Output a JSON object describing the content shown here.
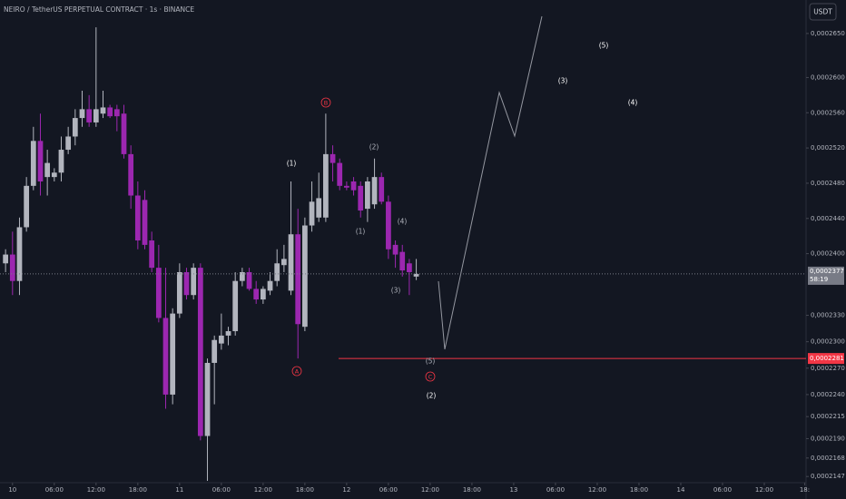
{
  "chart_data": {
    "type": "candlestick",
    "title": "NEIRO / TetherUS PERPETUAL CONTRACT · 1s · BINANCE",
    "currency": "USDT",
    "up_color": "#b2b5be",
    "down_color": "#9c27b0",
    "x": [
      -1,
      0,
      1,
      2,
      3,
      4,
      5,
      6,
      7,
      8,
      9,
      10,
      11,
      12,
      13,
      14,
      15,
      16,
      17,
      18,
      19,
      20,
      21,
      22,
      23,
      24,
      25,
      26,
      27,
      28,
      29,
      30,
      31,
      32,
      33,
      34,
      35,
      36,
      37,
      38,
      39,
      40,
      41,
      42,
      43,
      44,
      45,
      46,
      47,
      48,
      49,
      50,
      51,
      52,
      53,
      54,
      55,
      56,
      57,
      58
    ],
    "open": [
      0.0002389,
      0.0002399,
      0.0002369,
      0.000243,
      0.0002477,
      0.0002528,
      0.0002487,
      0.0002487,
      0.0002492,
      0.0002518,
      0.0002533,
      0.0002554,
      0.0002564,
      0.0002549,
      0.0002559,
      0.0002566,
      0.0002564,
      0.0002559,
      0.0002513,
      0.0002466,
      0.0002461,
      0.0002415,
      0.0002384,
      0.0002327,
      0.000224,
      0.0002332,
      0.0002379,
      0.0002353,
      0.0002384,
      0.0002193,
      0.0002276,
      0.0002298,
      0.0002307,
      0.0002312,
      0.0002369,
      0.0002379,
      0.000236,
      0.0002348,
      0.0002358,
      0.0002369,
      0.0002387,
      0.0002358,
      0.0002422,
      0.0002317,
      0.0002432,
      0.0002441,
      0.0002441,
      0.0002513,
      0.0002503,
      0.0002477,
      0.0002482,
      0.0002477,
      0.0002451,
      0.0002456,
      0.0002487,
      0.0002459,
      0.000241,
      0.0002402,
      0.0002389,
      0.0002374
    ],
    "high": [
      0.0002405,
      0.0002425,
      0.0002441,
      0.0002487,
      0.0002544,
      0.0002559,
      0.0002518,
      0.0002497,
      0.0002533,
      0.0002544,
      0.0002564,
      0.0002585,
      0.000258,
      0.0002657,
      0.0002585,
      0.0002569,
      0.0002569,
      0.0002569,
      0.0002523,
      0.0002482,
      0.0002472,
      0.0002425,
      0.000241,
      0.0002384,
      0.0002338,
      0.0002389,
      0.0002384,
      0.0002389,
      0.0002389,
      0.0002281,
      0.0002307,
      0.0002332,
      0.0002317,
      0.0002379,
      0.0002384,
      0.0002384,
      0.0002369,
      0.0002363,
      0.0002379,
      0.0002405,
      0.000241,
      0.0002482,
      0.0002451,
      0.0002441,
      0.0002482,
      0.0002492,
      0.0002559,
      0.0002523,
      0.0002508,
      0.0002482,
      0.0002487,
      0.0002482,
      0.0002487,
      0.0002508,
      0.0002492,
      0.0002466,
      0.0002415,
      0.000241,
      0.0002394,
      0.0002394
    ],
    "low": [
      0.0002379,
      0.0002353,
      0.0002353,
      0.0002425,
      0.0002472,
      0.0002466,
      0.0002466,
      0.0002482,
      0.0002482,
      0.0002513,
      0.0002523,
      0.0002544,
      0.0002544,
      0.0002544,
      0.0002554,
      0.0002554,
      0.0002539,
      0.0002508,
      0.0002451,
      0.0002405,
      0.0002405,
      0.0002379,
      0.0002322,
      0.0002224,
      0.0002229,
      0.0002327,
      0.0002348,
      0.0002348,
      0.0002188,
      0.0002142,
      0.0002229,
      0.0002291,
      0.0002296,
      0.0002307,
      0.0002363,
      0.0002358,
      0.0002343,
      0.0002343,
      0.0002353,
      0.0002363,
      0.0002379,
      0.0002353,
      0.0002281,
      0.0002312,
      0.0002425,
      0.0002436,
      0.0002436,
      0.0002482,
      0.0002472,
      0.0002472,
      0.0002466,
      0.0002441,
      0.0002436,
      0.0002451,
      0.0002456,
      0.0002394,
      0.0002384,
      0.0002374,
      0.0002353,
      0.000237
    ],
    "close": [
      0.0002399,
      0.0002369,
      0.000243,
      0.0002477,
      0.0002528,
      0.0002482,
      0.0002503,
      0.0002492,
      0.0002518,
      0.0002533,
      0.0002554,
      0.0002564,
      0.0002549,
      0.0002564,
      0.0002566,
      0.0002556,
      0.0002556,
      0.0002513,
      0.0002466,
      0.0002415,
      0.000241,
      0.0002384,
      0.0002327,
      0.000224,
      0.0002332,
      0.0002379,
      0.0002353,
      0.0002384,
      0.0002193,
      0.0002276,
      0.0002302,
      0.0002307,
      0.0002312,
      0.0002369,
      0.0002379,
      0.000236,
      0.0002348,
      0.000236,
      0.0002369,
      0.0002389,
      0.0002394,
      0.0002422,
      0.000232,
      0.0002432,
      0.0002459,
      0.0002463,
      0.0002513,
      0.0002503,
      0.0002477,
      0.0002475,
      0.0002472,
      0.0002449,
      0.0002482,
      0.0002487,
      0.0002459,
      0.0002405,
      0.0002399,
      0.0002381,
      0.0002379,
      0.0002377
    ],
    "xlim": [
      -1.8,
      114
    ],
    "xticks": [
      {
        "value": 0,
        "label": "10"
      },
      {
        "value": 6,
        "label": "06:00"
      },
      {
        "value": 12,
        "label": "12:00"
      },
      {
        "value": 18,
        "label": "18:00"
      },
      {
        "value": 24,
        "label": "11"
      },
      {
        "value": 30,
        "label": "06:00"
      },
      {
        "value": 36,
        "label": "12:00"
      },
      {
        "value": 42,
        "label": "18:00"
      },
      {
        "value": 48,
        "label": "12"
      },
      {
        "value": 54,
        "label": "06:00"
      },
      {
        "value": 60,
        "label": "12:00"
      },
      {
        "value": 66,
        "label": "18:00"
      },
      {
        "value": 72,
        "label": "13"
      },
      {
        "value": 78,
        "label": "06:00"
      },
      {
        "value": 84,
        "label": "12:00"
      },
      {
        "value": 90,
        "label": "18:00"
      },
      {
        "value": 96,
        "label": "14"
      },
      {
        "value": 102,
        "label": "06:00"
      },
      {
        "value": 108,
        "label": "12:00"
      },
      {
        "value": 113.8,
        "label": "18:"
      }
    ],
    "ylim": [
      0.000214,
      0.0002688
    ],
    "yticks": [
      {
        "value": 0.000265,
        "label": "0,0002650"
      },
      {
        "value": 0.00026,
        "label": "0,0002600"
      },
      {
        "value": 0.000256,
        "label": "0,0002560"
      },
      {
        "value": 0.000252,
        "label": "0,0002520"
      },
      {
        "value": 0.000248,
        "label": "0,0002480"
      },
      {
        "value": 0.000244,
        "label": "0,0002440"
      },
      {
        "value": 0.00024,
        "label": "0,0002400"
      },
      {
        "value": 0.000233,
        "label": "0,0002330"
      },
      {
        "value": 0.00023,
        "label": "0,0002300"
      },
      {
        "value": 0.000227,
        "label": "0,0002270"
      },
      {
        "value": 0.000224,
        "label": "0,0002240"
      },
      {
        "value": 0.0002215,
        "label": "0,0002215"
      },
      {
        "value": 0.000219,
        "label": "0,0002190"
      },
      {
        "value": 0.0002168,
        "label": "0,0002168"
      },
      {
        "value": 0.0002147,
        "label": "0,0002147"
      }
    ],
    "last_price": {
      "value": 0.0002377,
      "label": "0,0002377",
      "countdown": "58:19",
      "color": "#787b86"
    },
    "price_line": {
      "value": 0.0002281,
      "label": "0,0002281",
      "color": "#f23645"
    },
    "annotations": [
      {
        "text": "(1)",
        "color": "#ffffff"
      },
      {
        "text": "B",
        "color": "#f23645",
        "circled": true
      },
      {
        "text": "(2)",
        "color": "#b2b5be"
      },
      {
        "text": "(1)",
        "color": "#b2b5be"
      },
      {
        "text": "(4)",
        "color": "#b2b5be"
      },
      {
        "text": "(3)",
        "color": "#b2b5be"
      },
      {
        "text": "A",
        "color": "#f23645",
        "circled": true
      },
      {
        "text": "(5)",
        "color": "#b2b5be"
      },
      {
        "text": "C",
        "color": "#f23645",
        "circled": true
      },
      {
        "text": "(2)",
        "color": "#ffffff"
      },
      {
        "text": "(3)",
        "color": "#ffffff"
      },
      {
        "text": "(4)",
        "color": "#ffffff"
      },
      {
        "text": "(5)",
        "color": "#ffffff"
      }
    ]
  }
}
